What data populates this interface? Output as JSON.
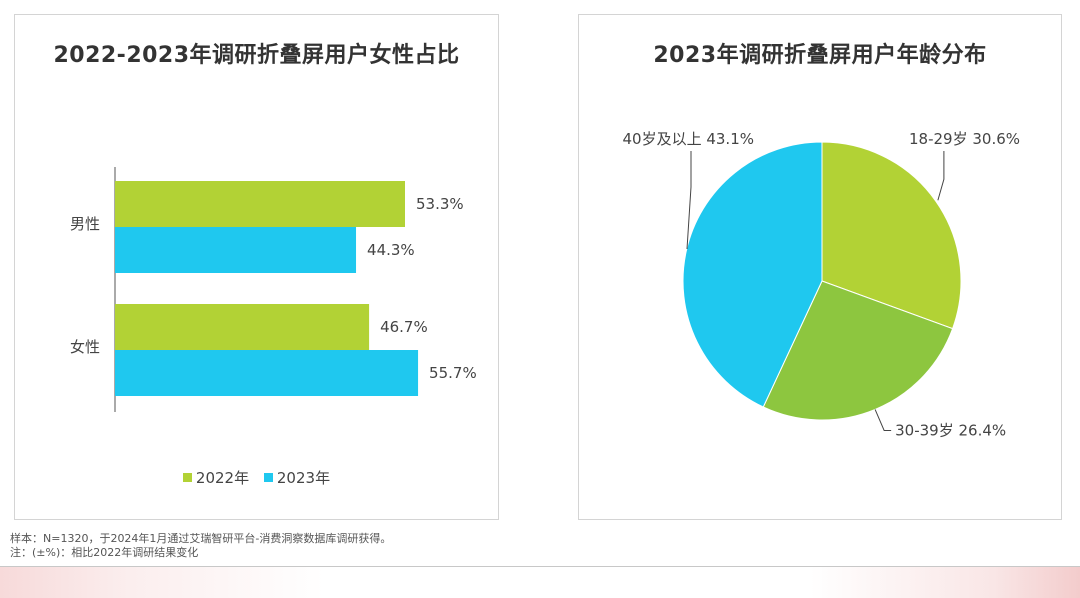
{
  "chart_data": [
    {
      "type": "bar",
      "orientation": "horizontal",
      "title": "2022-2023年调研折叠屏用户女性占比",
      "categories": [
        "男性",
        "女性"
      ],
      "series": [
        {
          "name": "2022年",
          "values": [
            53.3,
            46.7
          ],
          "labels": [
            "53.3%",
            "46.7%"
          ],
          "color": "#b2d235"
        },
        {
          "name": "2023年",
          "values": [
            44.3,
            55.7
          ],
          "labels": [
            "44.3%",
            "55.7%"
          ],
          "color": "#1fc8ef"
        }
      ],
      "xlim": [
        0,
        100
      ],
      "legend_position": "bottom",
      "grid": false
    },
    {
      "type": "pie",
      "title": "2023年调研折叠屏用户年龄分布",
      "slices": [
        {
          "label": "18-29岁 30.6%",
          "value": 30.6,
          "color": "#b2d235"
        },
        {
          "label": "30-39岁 26.4%",
          "value": 26.4,
          "color": "#8dc63f"
        },
        {
          "label": "40岁及以上 43.1%",
          "value": 43.1,
          "color": "#1fc8ef"
        }
      ]
    }
  ],
  "footnotes": {
    "line1": "样本：N=1320，于2024年1月通过艾瑞智研平台-消费洞察数据库调研获得。",
    "line2": "注：(±%)：相比2022年调研结果变化"
  }
}
